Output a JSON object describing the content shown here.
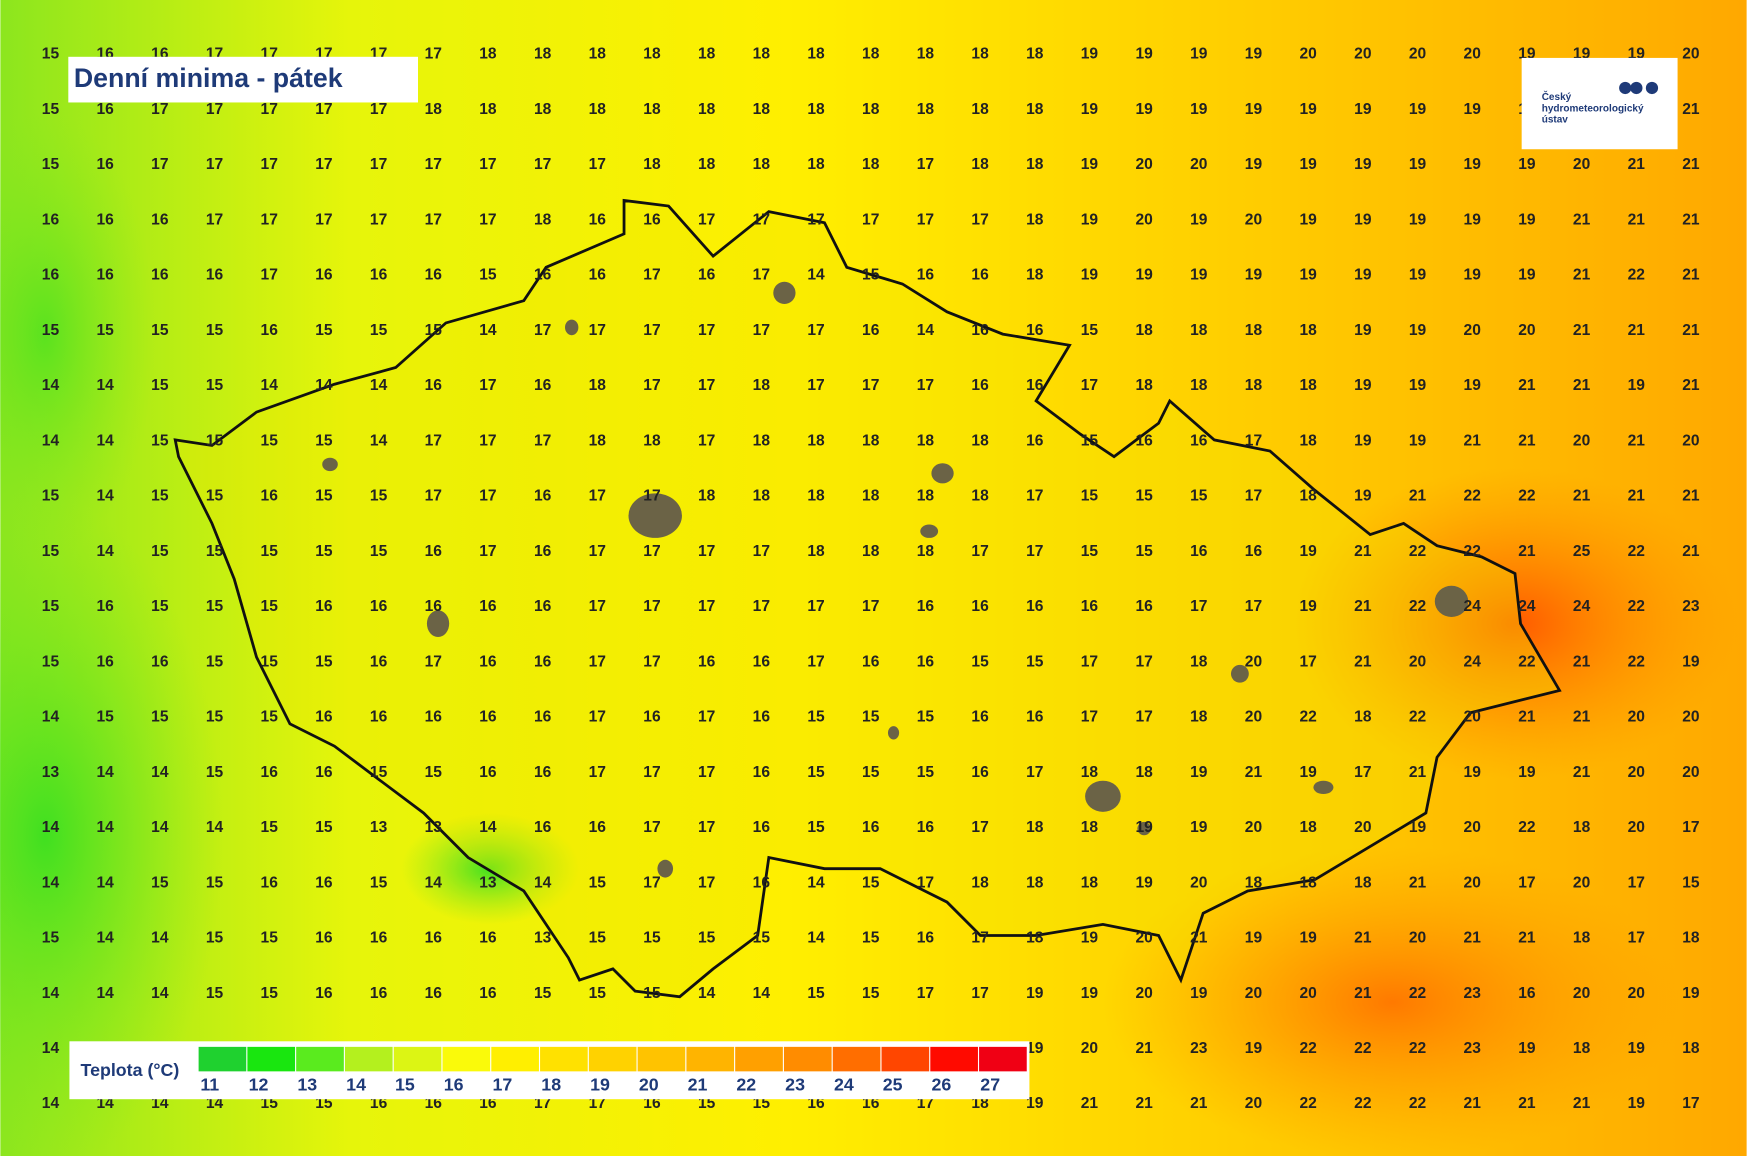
{
  "map": {
    "title": "Denní minima - pátek",
    "logo": [
      "Český",
      "hydrometeorologický",
      "ústav"
    ],
    "grid": {
      "rows": [
        [
          15,
          16,
          16,
          17,
          17,
          17,
          17,
          17,
          18,
          18,
          18,
          18,
          18,
          18,
          18,
          18,
          18,
          18,
          18,
          19,
          19,
          19,
          19,
          20,
          20,
          20,
          20,
          19,
          19,
          19,
          20
        ],
        [
          15,
          16,
          17,
          17,
          17,
          17,
          17,
          18,
          18,
          18,
          18,
          18,
          18,
          18,
          18,
          18,
          18,
          18,
          18,
          19,
          19,
          19,
          19,
          19,
          19,
          19,
          19,
          19,
          null,
          null,
          21
        ],
        [
          15,
          16,
          17,
          17,
          17,
          17,
          17,
          17,
          17,
          17,
          17,
          18,
          18,
          18,
          18,
          18,
          17,
          18,
          18,
          19,
          20,
          20,
          19,
          19,
          19,
          19,
          19,
          19,
          20,
          21,
          21
        ],
        [
          16,
          16,
          16,
          17,
          17,
          17,
          17,
          17,
          17,
          18,
          16,
          16,
          17,
          17,
          17,
          17,
          17,
          17,
          18,
          19,
          20,
          19,
          20,
          19,
          19,
          19,
          19,
          19,
          21,
          21,
          21
        ],
        [
          16,
          16,
          16,
          16,
          17,
          16,
          16,
          16,
          15,
          16,
          16,
          17,
          16,
          17,
          14,
          15,
          16,
          16,
          18,
          19,
          19,
          19,
          19,
          19,
          19,
          19,
          19,
          19,
          21,
          22,
          21
        ],
        [
          15,
          15,
          15,
          15,
          16,
          15,
          15,
          15,
          14,
          17,
          17,
          17,
          17,
          17,
          17,
          16,
          14,
          16,
          16,
          15,
          18,
          18,
          18,
          18,
          19,
          19,
          20,
          20,
          21,
          21,
          21
        ],
        [
          14,
          14,
          15,
          15,
          14,
          14,
          14,
          16,
          17,
          16,
          18,
          17,
          17,
          18,
          17,
          17,
          17,
          16,
          16,
          17,
          18,
          18,
          18,
          18,
          19,
          19,
          19,
          21,
          21,
          19,
          21
        ],
        [
          14,
          14,
          15,
          15,
          15,
          15,
          14,
          17,
          17,
          17,
          18,
          18,
          17,
          18,
          18,
          18,
          18,
          18,
          16,
          15,
          16,
          16,
          17,
          18,
          19,
          19,
          21,
          21,
          20,
          21,
          20
        ],
        [
          15,
          14,
          15,
          15,
          16,
          15,
          15,
          17,
          17,
          16,
          17,
          17,
          18,
          18,
          18,
          18,
          18,
          18,
          17,
          15,
          15,
          15,
          17,
          18,
          19,
          21,
          22,
          22,
          21,
          21,
          21
        ],
        [
          15,
          14,
          15,
          15,
          15,
          15,
          15,
          16,
          17,
          16,
          17,
          17,
          17,
          17,
          18,
          18,
          18,
          17,
          17,
          15,
          15,
          16,
          16,
          19,
          21,
          22,
          22,
          21,
          25,
          22,
          21
        ],
        [
          15,
          16,
          15,
          15,
          15,
          16,
          16,
          16,
          16,
          16,
          17,
          17,
          17,
          17,
          17,
          17,
          16,
          16,
          16,
          16,
          16,
          17,
          17,
          19,
          21,
          22,
          24,
          24,
          24,
          22,
          23
        ],
        [
          15,
          16,
          16,
          15,
          15,
          15,
          16,
          17,
          16,
          16,
          17,
          17,
          16,
          16,
          17,
          16,
          16,
          15,
          15,
          17,
          17,
          18,
          20,
          17,
          21,
          20,
          24,
          22,
          21,
          22,
          19
        ],
        [
          14,
          15,
          15,
          15,
          15,
          16,
          16,
          16,
          16,
          16,
          17,
          16,
          17,
          16,
          15,
          15,
          15,
          16,
          16,
          17,
          17,
          18,
          20,
          22,
          18,
          22,
          20,
          21,
          21,
          20,
          20
        ],
        [
          13,
          14,
          14,
          15,
          16,
          16,
          15,
          15,
          16,
          16,
          17,
          17,
          17,
          16,
          15,
          15,
          15,
          16,
          17,
          18,
          18,
          19,
          21,
          19,
          17,
          21,
          19,
          19,
          21,
          20,
          20
        ],
        [
          14,
          14,
          14,
          14,
          15,
          15,
          13,
          13,
          14,
          16,
          16,
          17,
          17,
          16,
          15,
          16,
          16,
          17,
          18,
          18,
          19,
          19,
          20,
          18,
          20,
          19,
          20,
          22,
          18,
          20,
          17
        ],
        [
          14,
          14,
          15,
          15,
          16,
          16,
          15,
          14,
          13,
          14,
          15,
          17,
          17,
          16,
          14,
          15,
          17,
          18,
          18,
          18,
          19,
          20,
          18,
          18,
          18,
          21,
          20,
          17,
          20,
          17,
          15
        ],
        [
          15,
          14,
          14,
          15,
          15,
          16,
          16,
          16,
          16,
          13,
          15,
          15,
          15,
          15,
          14,
          15,
          16,
          17,
          18,
          19,
          20,
          21,
          19,
          19,
          21,
          20,
          21,
          21,
          18,
          17,
          18
        ],
        [
          14,
          14,
          14,
          15,
          15,
          16,
          16,
          16,
          16,
          15,
          15,
          15,
          14,
          14,
          15,
          15,
          17,
          17,
          19,
          19,
          20,
          19,
          20,
          20,
          21,
          22,
          23,
          16,
          20,
          20,
          19
        ],
        [
          14,
          null,
          null,
          null,
          null,
          null,
          null,
          null,
          null,
          null,
          null,
          null,
          null,
          null,
          null,
          null,
          null,
          null,
          19,
          20,
          21,
          23,
          19,
          22,
          22,
          22,
          23,
          19,
          18,
          19,
          18
        ],
        [
          14,
          14,
          14,
          14,
          15,
          15,
          16,
          16,
          16,
          17,
          17,
          16,
          15,
          15,
          16,
          16,
          17,
          18,
          19,
          21,
          21,
          21,
          20,
          22,
          22,
          22,
          21,
          21,
          21,
          19,
          17
        ]
      ]
    },
    "legend": {
      "title": "Teplota (°C)",
      "items": [
        {
          "label": 11,
          "color": "#1fd12f"
        },
        {
          "label": 12,
          "color": "#19e60f"
        },
        {
          "label": 13,
          "color": "#5aeb1e"
        },
        {
          "label": 14,
          "color": "#b4f01e"
        },
        {
          "label": 15,
          "color": "#dcf514"
        },
        {
          "label": 16,
          "color": "#fafa0a"
        },
        {
          "label": 17,
          "color": "#ffef00"
        },
        {
          "label": 18,
          "color": "#ffe100"
        },
        {
          "label": 19,
          "color": "#ffd200"
        },
        {
          "label": 20,
          "color": "#ffc300"
        },
        {
          "label": 21,
          "color": "#ffb400"
        },
        {
          "label": 22,
          "color": "#ffa000"
        },
        {
          "label": 23,
          "color": "#ff8c00"
        },
        {
          "label": 24,
          "color": "#ff6e00"
        },
        {
          "label": 25,
          "color": "#ff4600"
        },
        {
          "label": 26,
          "color": "#ff0a00"
        },
        {
          "label": 27,
          "color": "#f00014"
        }
      ]
    }
  }
}
